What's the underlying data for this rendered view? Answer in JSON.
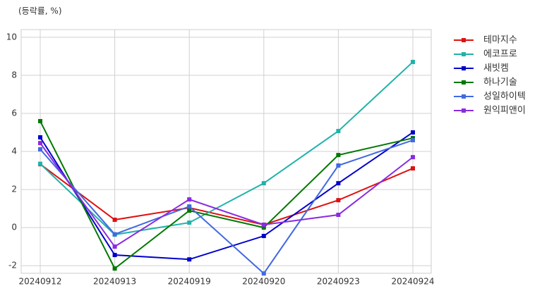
{
  "chart_data": {
    "type": "line",
    "title": "(등락률, %)",
    "categories": [
      "20240912",
      "20240913",
      "20240919",
      "20240920",
      "20240923",
      "20240924"
    ],
    "series": [
      {
        "name": "테마지수",
        "color": "#e01010",
        "values": [
          3.33,
          0.41,
          1.04,
          0.15,
          1.44,
          3.11
        ]
      },
      {
        "name": "에코프로",
        "color": "#20b2aa",
        "values": [
          3.35,
          -0.37,
          0.26,
          2.33,
          5.07,
          8.7
        ]
      },
      {
        "name": "새빗켐",
        "color": "#0000cd",
        "values": [
          4.74,
          -1.44,
          -1.67,
          -0.44,
          2.33,
          5.0
        ]
      },
      {
        "name": "하나기술",
        "color": "#007800",
        "values": [
          5.59,
          -2.15,
          0.89,
          0.0,
          3.81,
          4.7
        ]
      },
      {
        "name": "성일하이텍",
        "color": "#4169e1",
        "values": [
          4.11,
          -0.35,
          1.11,
          -2.41,
          3.26,
          4.59
        ]
      },
      {
        "name": "원익피앤이",
        "color": "#8a2be2",
        "values": [
          4.44,
          -1.0,
          1.48,
          0.15,
          0.67,
          3.7
        ]
      }
    ],
    "ylim": [
      -2.4,
      10.4
    ],
    "yticks": [
      -2,
      0,
      2,
      4,
      6,
      8,
      10
    ],
    "grid": true,
    "legend": "outside-right"
  }
}
